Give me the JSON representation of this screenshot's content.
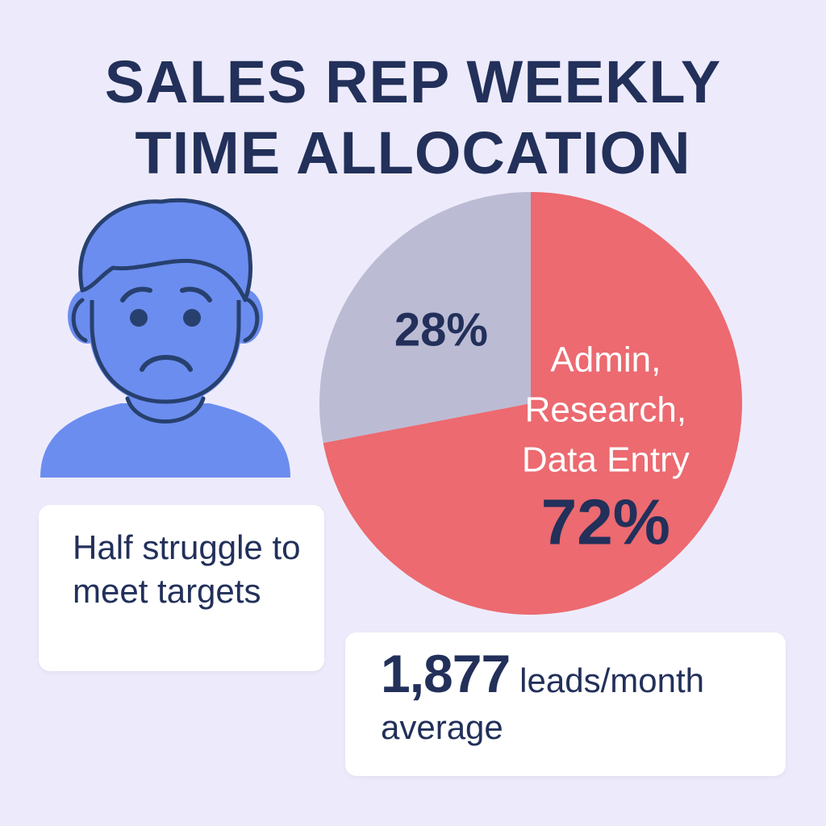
{
  "title": {
    "line1": "SALES REP WEEKLY",
    "line2": "TIME ALLOCATION"
  },
  "person_icon": "sad-person-icon",
  "chart_data": {
    "type": "pie",
    "slices": [
      {
        "label_lines": [
          "Admin,",
          "Research,",
          "Data Entry"
        ],
        "value_label": "72%",
        "value": 72,
        "color": "#ec6a70"
      },
      {
        "label_lines": [],
        "value_label": "28%",
        "value": 28,
        "color": "#bcbbd4"
      }
    ]
  },
  "cards": {
    "struggle": {
      "text": "Half struggle to meet targets"
    },
    "leads": {
      "number": "1,877",
      "text": "leads/month average"
    }
  },
  "colors": {
    "background": "#edebfb",
    "text": "#22305a",
    "icon": "#6b8def",
    "icon_dark": "#27406e",
    "card": "#ffffff"
  }
}
